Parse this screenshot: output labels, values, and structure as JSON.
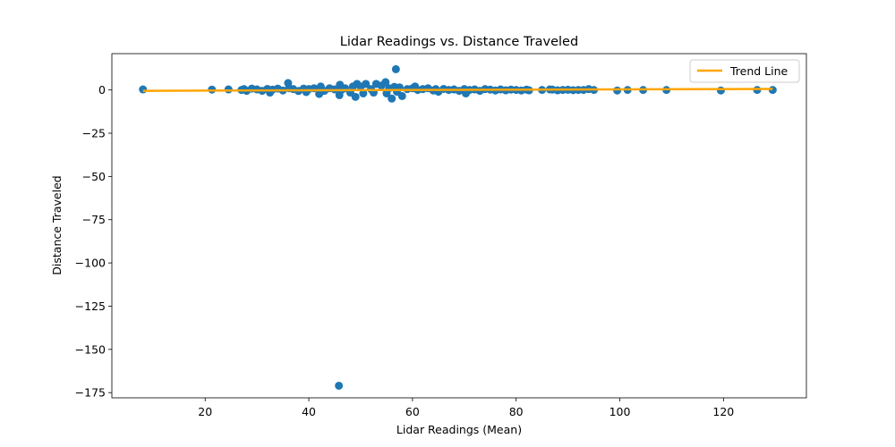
{
  "chart_data": {
    "type": "scatter",
    "title": "Lidar Readings vs. Distance Traveled",
    "xlabel": "Lidar Readings (Mean)",
    "ylabel": "Distance Traveled",
    "xlim": [
      2,
      136
    ],
    "ylim": [
      -178,
      21
    ],
    "xticks": [
      20,
      40,
      60,
      80,
      100,
      120
    ],
    "yticks": [
      0,
      -25,
      -50,
      -75,
      -100,
      -125,
      -150,
      -175
    ],
    "ytick_labels": [
      "0",
      "−25",
      "−50",
      "−75",
      "−100",
      "−125",
      "−150",
      "−175"
    ],
    "grid": false,
    "legend": {
      "placement": "upper right",
      "entries": [
        "Trend Line"
      ]
    },
    "colors": {
      "scatter": "#1f77b4",
      "trend": "#ffa500"
    },
    "series": [
      {
        "type": "scatter",
        "x": [
          8,
          21.3,
          24.5,
          27,
          27.5,
          28,
          29,
          30,
          31,
          32,
          32.5,
          33,
          34,
          35,
          36,
          36.2,
          37,
          38,
          39,
          39.5,
          40,
          41,
          42,
          42.3,
          43,
          44,
          45,
          45.8,
          45.9,
          46,
          46.3,
          47,
          48,
          48.5,
          49,
          49.3,
          50,
          50.5,
          51,
          52,
          52.5,
          53,
          54,
          54.8,
          55,
          55.5,
          56,
          56.5,
          56.8,
          57,
          57.5,
          58,
          59,
          60,
          60.5,
          61,
          62,
          63,
          64,
          64.5,
          65,
          66,
          67,
          68,
          69,
          70,
          70.3,
          71,
          72,
          73,
          74,
          75,
          76,
          77,
          78,
          79,
          80,
          81,
          82,
          82.5,
          85,
          86.5,
          87,
          88,
          89,
          90,
          91,
          92,
          93,
          94,
          95,
          99.5,
          101.5,
          104.5,
          109,
          119.5,
          126.5,
          129.5
        ],
        "y": [
          0.3,
          0.2,
          0.3,
          0,
          0.5,
          -0.5,
          0.8,
          0.3,
          -0.5,
          0.6,
          -1.5,
          0.2,
          0.8,
          -0.3,
          4,
          1,
          0.5,
          -0.6,
          0.8,
          -1.2,
          0.5,
          1,
          -2.3,
          2,
          -0.5,
          1,
          0.3,
          -171,
          -3,
          3,
          0,
          1,
          -1.5,
          2,
          -4,
          3.5,
          2,
          -2,
          3.5,
          0.5,
          -1.5,
          3.5,
          2.5,
          4.5,
          -2,
          1,
          -5,
          1.8,
          12,
          -1,
          1.5,
          -3.5,
          0.5,
          1,
          2,
          0,
          0.5,
          1,
          -0.3,
          0.5,
          -1,
          0.6,
          0,
          0.3,
          -0.5,
          0.5,
          -2,
          0,
          0.3,
          -0.5,
          0.5,
          0.2,
          -0.3,
          0.3,
          -0.2,
          0.2,
          0,
          -0.3,
          0.2,
          -0.2,
          0,
          0.3,
          0.2,
          -0.2,
          0,
          0.1,
          -0.1,
          0,
          0,
          0.5,
          0,
          -0.3,
          0,
          0,
          0,
          -0.3,
          0,
          0
        ]
      },
      {
        "type": "line",
        "name": "Trend Line",
        "x": [
          8,
          129.5
        ],
        "y": [
          -0.5,
          0.6
        ]
      }
    ]
  }
}
